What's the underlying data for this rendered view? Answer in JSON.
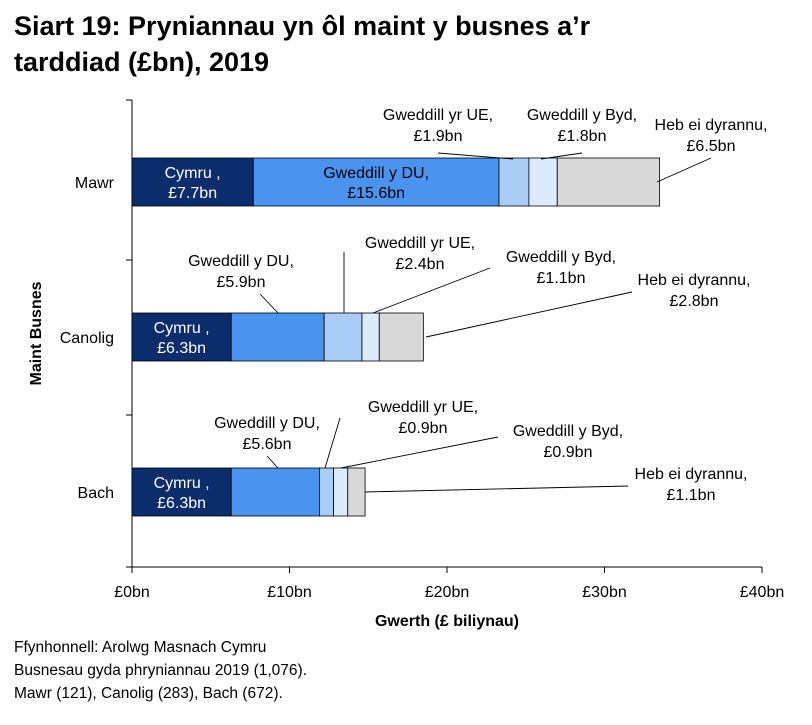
{
  "title_line1": "Siart 19: Pryniannau yn ôl maint y busnes a’r",
  "title_line2": "tarddiad (£bn), 2019",
  "source": {
    "line1": "Ffynhonnell: Arolwg Masnach Cymru",
    "line2": "Busnesau gyda phryniannau 2019 (1,076).",
    "line3": "Mawr (121), Canolig (283), Bach (672)."
  },
  "colors": {
    "Cymru": "#0b2d6b",
    "Gweddill y DU": "#4a94f0",
    "Gweddill yr UE": "#a9cdf7",
    "Gweddill y Byd": "#dcebfc",
    "Heb ei dyrannu": "#d9d9d9"
  },
  "chart_data": {
    "type": "bar",
    "orientation": "horizontal",
    "stacked": true,
    "xlabel": "Gwerth (£ biliynau)",
    "ylabel": "Maint Busnes",
    "xlim": [
      0,
      40
    ],
    "xticks": [
      0,
      10,
      20,
      30,
      40
    ],
    "xtick_labels": [
      "£0bn",
      "£10bn",
      "£20bn",
      "£30bn",
      "£40bn"
    ],
    "grid": false,
    "legend": "none",
    "categories": [
      "Mawr",
      "Canolig",
      "Bach"
    ],
    "series": [
      {
        "name": "Cymru",
        "values": [
          7.7,
          6.3,
          6.3
        ],
        "labels": [
          "Cymru ,\n£7.7bn",
          "Cymru ,\n£6.3bn",
          "Cymru ,\n£6.3bn"
        ]
      },
      {
        "name": "Gweddill y DU",
        "values": [
          15.6,
          5.9,
          5.6
        ],
        "labels": [
          "Gweddill y DU,\n£15.6bn",
          "Gweddill y DU,\n£5.9bn",
          "Gweddill y DU,\n£5.6bn"
        ]
      },
      {
        "name": "Gweddill yr UE",
        "values": [
          1.9,
          2.4,
          0.9
        ],
        "labels": [
          "Gweddill yr UE,\n£1.9bn",
          "Gweddill yr UE,\n£2.4bn",
          "Gweddill yr UE,\n£0.9bn"
        ]
      },
      {
        "name": "Gweddill y Byd",
        "values": [
          1.8,
          1.1,
          0.9
        ],
        "labels": [
          "Gweddill y Byd,\n£1.8bn",
          "Gweddill y Byd,\n£1.1bn",
          "Gweddill y Byd,\n£0.9bn"
        ]
      },
      {
        "name": "Heb ei dyrannu",
        "values": [
          6.5,
          2.8,
          1.1
        ],
        "labels": [
          "Heb ei dyrannu,\n£6.5bn",
          "Heb ei dyrannu,\n£2.8bn",
          "Heb ei dyrannu,\n£1.1bn"
        ]
      }
    ]
  }
}
